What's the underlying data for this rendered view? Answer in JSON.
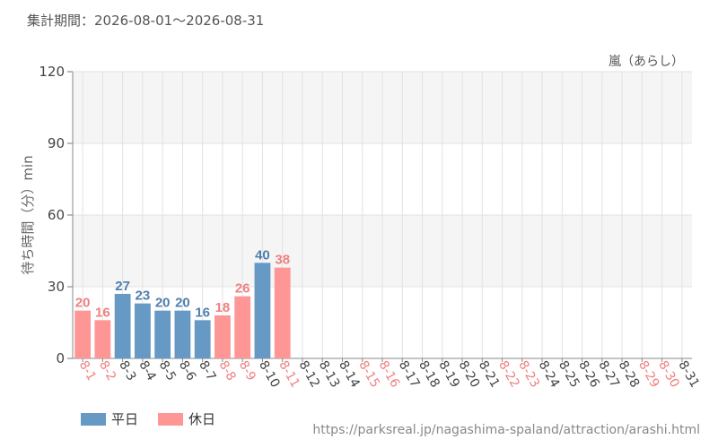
{
  "header": {
    "period_label": "集計期間：2026-08-01～2026-08-31"
  },
  "colors": {
    "weekday": "#6699c4",
    "holiday": "#ff9696",
    "weekday_text": "#4f7fad",
    "holiday_text": "#f08080",
    "band": "#f5f5f5",
    "grid": "#e2e2e2",
    "axis_text": "#444444"
  },
  "chart_data": {
    "type": "bar",
    "title": "嵐（あらし）",
    "ylabel": "待ち時間（分）min",
    "xlabel": "",
    "ylim": [
      0,
      120
    ],
    "yticks": [
      0,
      30,
      60,
      90,
      120
    ],
    "categories": [
      "8-1",
      "8-2",
      "8-3",
      "8-4",
      "8-5",
      "8-6",
      "8-7",
      "8-8",
      "8-9",
      "8-10",
      "8-11",
      "8-12",
      "8-13",
      "8-14",
      "8-15",
      "8-16",
      "8-17",
      "8-18",
      "8-19",
      "8-20",
      "8-21",
      "8-22",
      "8-23",
      "8-24",
      "8-25",
      "8-26",
      "8-27",
      "8-28",
      "8-29",
      "8-30",
      "8-31"
    ],
    "values": [
      20,
      16,
      27,
      23,
      20,
      20,
      16,
      18,
      26,
      40,
      38,
      null,
      null,
      null,
      null,
      null,
      null,
      null,
      null,
      null,
      null,
      null,
      null,
      null,
      null,
      null,
      null,
      null,
      null,
      null,
      null
    ],
    "day_types": [
      "holiday",
      "holiday",
      "weekday",
      "weekday",
      "weekday",
      "weekday",
      "weekday",
      "holiday",
      "holiday",
      "weekday",
      "holiday",
      "weekday",
      "weekday",
      "weekday",
      "holiday",
      "holiday",
      "weekday",
      "weekday",
      "weekday",
      "weekday",
      "weekday",
      "holiday",
      "holiday",
      "weekday",
      "weekday",
      "weekday",
      "weekday",
      "weekday",
      "holiday",
      "holiday",
      "weekday"
    ],
    "legend": [
      {
        "name": "平日",
        "type": "weekday"
      },
      {
        "name": "休日",
        "type": "holiday"
      }
    ],
    "legend_position": "bottom-left",
    "grid": true
  },
  "footer": {
    "source_url": "https://parksreal.jp/nagashima-spaland/attraction/arashi.html"
  }
}
